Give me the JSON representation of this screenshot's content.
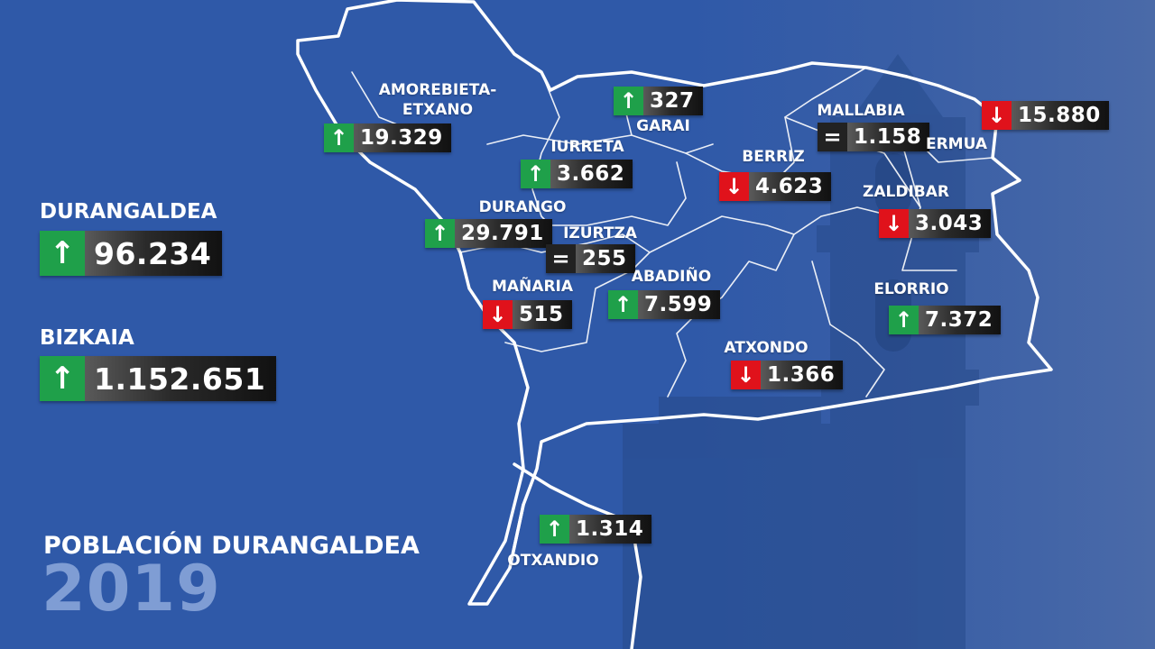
{
  "summary": {
    "region": {
      "name": "DURANGALDEA",
      "trend": "up",
      "value": "96.234"
    },
    "province": {
      "name": "BIZKAIA",
      "trend": "up",
      "value": "1.152.651"
    }
  },
  "title": "POBLACIÓN DURANGALDEA",
  "year": "2019",
  "trend_icons": {
    "up": "↑",
    "down": "↓",
    "equal": "="
  },
  "colors": {
    "background": "#2f59a8",
    "up": "#1fa04a",
    "down": "#e0121b",
    "equal": "#222222",
    "year": "#7f9dd4"
  },
  "municipalities": [
    {
      "name": "AMOREBIETA-\nETXANO",
      "trend": "up",
      "value": "19.329"
    },
    {
      "name": "GARAI",
      "trend": "up",
      "value": "327"
    },
    {
      "name": "IURRETA",
      "trend": "up",
      "value": "3.662"
    },
    {
      "name": "DURANGO",
      "trend": "up",
      "value": "29.791"
    },
    {
      "name": "IZURTZA",
      "trend": "equal",
      "value": "255"
    },
    {
      "name": "MAÑARIA",
      "trend": "down",
      "value": "515"
    },
    {
      "name": "ABADIÑO",
      "trend": "up",
      "value": "7.599"
    },
    {
      "name": "MALLABIA",
      "trend": "equal",
      "value": "1.158"
    },
    {
      "name": "BERRIZ",
      "trend": "down",
      "value": "4.623"
    },
    {
      "name": "ERMUA",
      "trend": "down",
      "value": "15.880"
    },
    {
      "name": "ZALDIBAR",
      "trend": "down",
      "value": "3.043"
    },
    {
      "name": "ELORRIO",
      "trend": "up",
      "value": "7.372"
    },
    {
      "name": "ATXONDO",
      "trend": "down",
      "value": "1.366"
    },
    {
      "name": "OTXANDIO",
      "trend": "up",
      "value": "1.314"
    }
  ]
}
